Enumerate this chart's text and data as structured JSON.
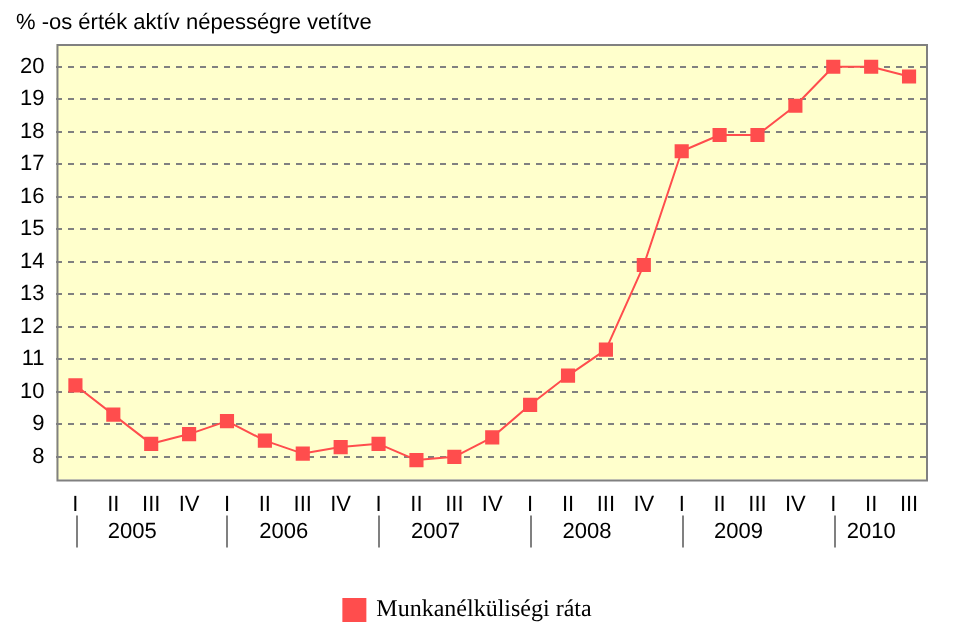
{
  "chart_data": {
    "type": "line",
    "ylabel": "% -os érték aktív népességre vetítve",
    "categories": [
      "I",
      "II",
      "III",
      "IV",
      "I",
      "II",
      "III",
      "IV",
      "I",
      "II",
      "III",
      "IV",
      "I",
      "II",
      "III",
      "IV",
      "I",
      "II",
      "III",
      "IV",
      "I",
      "II",
      "III"
    ],
    "series": [
      {
        "name": "Munkanélküliségi ráta",
        "color": "#ff4d4d",
        "values": [
          10.2,
          9.3,
          8.4,
          8.7,
          9.1,
          8.5,
          8.1,
          8.3,
          8.4,
          7.9,
          8.0,
          8.6,
          9.6,
          10.5,
          11.3,
          13.9,
          17.4,
          17.9,
          17.9,
          18.8,
          20.0,
          20.0,
          19.7
        ]
      }
    ],
    "annotations": [
      "2005",
      "2006",
      "2007",
      "2008",
      "2009",
      "2010"
    ],
    "ylim": [
      7.3,
      20.7
    ],
    "yticks": [
      8,
      9,
      10,
      11,
      12,
      13,
      14,
      15,
      16,
      17,
      18,
      19,
      20
    ],
    "grid": "y",
    "legend": "bottom",
    "marker": "square",
    "line_style": "solid"
  }
}
